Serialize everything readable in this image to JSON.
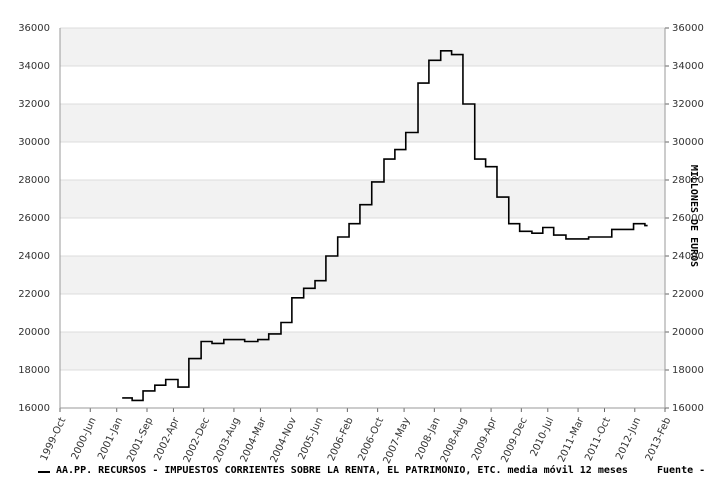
{
  "chart_data": {
    "type": "line",
    "step": true,
    "x": [
      2001.12,
      2001.34,
      2001.58,
      2001.84,
      2002.08,
      2002.35,
      2002.59,
      2002.86,
      2003.1,
      2003.36,
      2003.82,
      2004.11,
      2004.35,
      2004.62,
      2004.86,
      2005.12,
      2005.37,
      2005.61,
      2005.87,
      2006.12,
      2006.36,
      2006.62,
      2006.89,
      2007.13,
      2007.37,
      2007.64,
      2007.88,
      2008.14,
      2008.38,
      2008.63,
      2008.89,
      2009.13,
      2009.38,
      2009.64,
      2009.88,
      2010.15,
      2010.39,
      2010.63,
      2010.9,
      2011.4,
      2011.91,
      2012.39,
      2012.64,
      2012.7
    ],
    "series": [
      {
        "name": "AA.PP. RECURSOS - IMPUESTOS CORRIENTES SOBRE LA RENTA, EL PATRIMONIO, ETC. media móvil 12 meses",
        "color": "#000000",
        "values": [
          16530,
          16400,
          16900,
          17200,
          17500,
          17100,
          18600,
          19500,
          19400,
          19600,
          19500,
          19600,
          19900,
          20500,
          21800,
          22300,
          22700,
          24000,
          25000,
          25700,
          26700,
          27900,
          29100,
          29600,
          30500,
          33100,
          34300,
          34800,
          34600,
          32000,
          29100,
          28700,
          27100,
          25700,
          25300,
          25200,
          25500,
          25100,
          24900,
          25000,
          25400,
          25700,
          25600,
          25600
        ]
      }
    ],
    "source": "Fuente -",
    "y2_label": "MILLONES DE EUROS",
    "xlim": [
      1999.75,
      2013.083
    ],
    "xticks": [
      {
        "value": 1999.75,
        "label": "1999-Oct"
      },
      {
        "value": 2000.417,
        "label": "2000-Jun"
      },
      {
        "value": 2001.0,
        "label": "2001-Jan"
      },
      {
        "value": 2001.667,
        "label": "2001-Sep"
      },
      {
        "value": 2002.25,
        "label": "2002-Apr"
      },
      {
        "value": 2002.917,
        "label": "2002-Dec"
      },
      {
        "value": 2003.583,
        "label": "2003-Aug"
      },
      {
        "value": 2004.167,
        "label": "2004-Mar"
      },
      {
        "value": 2004.833,
        "label": "2004-Nov"
      },
      {
        "value": 2005.417,
        "label": "2005-Jun"
      },
      {
        "value": 2006.083,
        "label": "2006-Feb"
      },
      {
        "value": 2006.75,
        "label": "2006-Oct"
      },
      {
        "value": 2007.333,
        "label": "2007-May"
      },
      {
        "value": 2008.0,
        "label": "2008-Jan"
      },
      {
        "value": 2008.583,
        "label": "2008-Aug"
      },
      {
        "value": 2009.25,
        "label": "2009-Apr"
      },
      {
        "value": 2009.917,
        "label": "2009-Dec"
      },
      {
        "value": 2010.5,
        "label": "2010-Jul"
      },
      {
        "value": 2011.167,
        "label": "2011-Mar"
      },
      {
        "value": 2011.75,
        "label": "2011-Oct"
      },
      {
        "value": 2012.417,
        "label": "2012-Jun"
      },
      {
        "value": 2013.083,
        "label": "2013-Feb"
      }
    ],
    "ylim": [
      16000,
      36000
    ],
    "yticks": [
      16000,
      18000,
      20000,
      22000,
      24000,
      26000,
      28000,
      30000,
      32000,
      34000,
      36000
    ],
    "y2lim": [
      16000,
      36000
    ],
    "y2ticks": [
      16000,
      18000,
      20000,
      22000,
      24000,
      26000,
      28000,
      30000,
      32000,
      34000,
      36000
    ],
    "grid": true,
    "bands": true
  }
}
